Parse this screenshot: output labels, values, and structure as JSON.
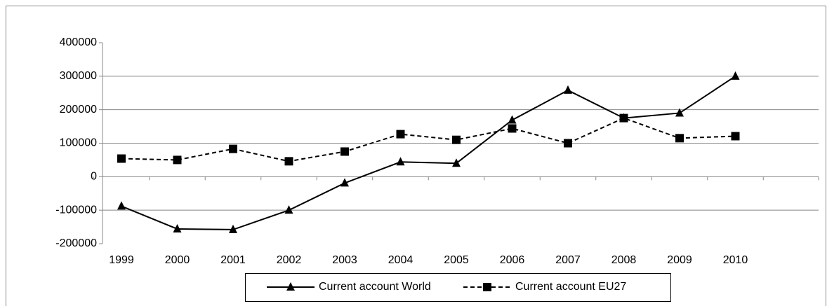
{
  "chart_data": {
    "type": "line",
    "categories": [
      "1999",
      "2000",
      "2001",
      "2002",
      "2003",
      "2004",
      "2005",
      "2006",
      "2007",
      "2008",
      "2009",
      "2010",
      null
    ],
    "series": [
      {
        "name": "Current account World",
        "color": "#000000",
        "line_style": "solid",
        "marker": "triangle",
        "values": [
          -88000,
          -156000,
          -158000,
          -100000,
          -19000,
          44000,
          40000,
          169000,
          258000,
          175000,
          190000,
          300000,
          null
        ]
      },
      {
        "name": "Current account EU27",
        "color": "#000000",
        "line_style": "dashed",
        "marker": "square",
        "values": [
          54000,
          50000,
          83000,
          46000,
          75000,
          127000,
          110000,
          144000,
          100000,
          175000,
          115000,
          121000,
          null
        ]
      }
    ],
    "ylim": [
      -200000,
      400000
    ],
    "yticks": [
      -200000,
      -100000,
      0,
      100000,
      200000,
      300000,
      400000
    ],
    "grid": true,
    "legend": "bottom"
  }
}
